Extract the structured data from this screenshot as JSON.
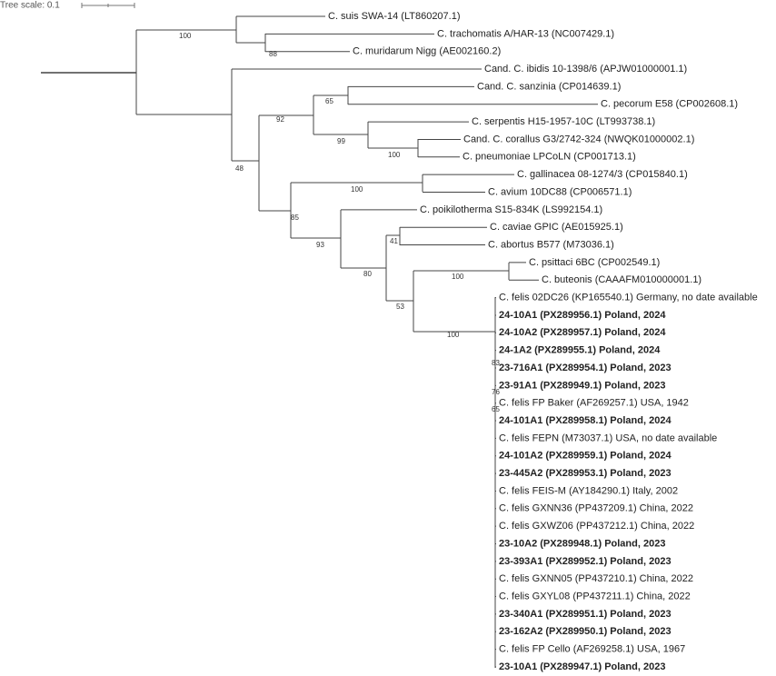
{
  "scale_label": "Tree scale: 0.1",
  "leaves": [
    {
      "label": "C. suis SWA-14 (LT860207.1)",
      "bold": false
    },
    {
      "label": "C. trachomatis A/HAR-13 (NC007429.1)",
      "bold": false
    },
    {
      "label": "C. muridarum Nigg (AE002160.2)",
      "bold": false
    },
    {
      "label": "Cand. C. ibidis 10-1398/6 (APJW01000001.1)",
      "bold": false
    },
    {
      "label": "Cand. C. sanzinia (CP014639.1)",
      "bold": false
    },
    {
      "label": "C. pecorum E58 (CP002608.1)",
      "bold": false
    },
    {
      "label": "C. serpentis H15-1957-10C (LT993738.1)",
      "bold": false
    },
    {
      "label": "Cand. C. corallus G3/2742-324 (NWQK01000002.1)",
      "bold": false
    },
    {
      "label": "C. pneumoniae LPCoLN (CP001713.1)",
      "bold": false
    },
    {
      "label": "C. gallinacea 08-1274/3 (CP015840.1)",
      "bold": false
    },
    {
      "label": "C. avium 10DC88 (CP006571.1)",
      "bold": false
    },
    {
      "label": "C. poikilotherma S15-834K (LS992154.1)",
      "bold": false
    },
    {
      "label": "C. caviae GPIC (AE015925.1)",
      "bold": false
    },
    {
      "label": "C. abortus B577 (M73036.1)",
      "bold": false
    },
    {
      "label": "C. psittaci 6BC (CP002549.1)",
      "bold": false
    },
    {
      "label": "C. buteonis (CAAAFM010000001.1)",
      "bold": false
    },
    {
      "label": "C. felis 02DC26 (KP165540.1) Germany, no date available",
      "bold": false
    },
    {
      "label": "24-10A1 (PX289956.1) Poland, 2024",
      "bold": true
    },
    {
      "label": "24-10A2 (PX289957.1) Poland, 2024",
      "bold": true
    },
    {
      "label": "24-1A2 (PX289955.1) Poland, 2024",
      "bold": true
    },
    {
      "label": "23-716A1 (PX289954.1) Poland, 2023",
      "bold": true
    },
    {
      "label": "23-91A1 (PX289949.1) Poland, 2023",
      "bold": true
    },
    {
      "label": "C. felis FP Baker (AF269257.1) USA, 1942",
      "bold": false
    },
    {
      "label": "24-101A1 (PX289958.1) Poland, 2024",
      "bold": true
    },
    {
      "label": "C. felis FEPN (M73037.1) USA, no date available",
      "bold": false
    },
    {
      "label": "24-101A2 (PX289959.1) Poland, 2024",
      "bold": true
    },
    {
      "label": "23-445A2 (PX289953.1) Poland, 2023",
      "bold": true
    },
    {
      "label": "C. felis FEIS-M (AY184290.1) Italy, 2002",
      "bold": false
    },
    {
      "label": "C. felis GXNN36 (PP437209.1) China, 2022",
      "bold": false
    },
    {
      "label": "C. felis GXWZ06 (PP437212.1) China, 2022",
      "bold": false
    },
    {
      "label": "23-10A2 (PX289948.1) Poland, 2023",
      "bold": true
    },
    {
      "label": "23-393A1 (PX289952.1) Poland, 2023",
      "bold": true
    },
    {
      "label": "C. felis GXNN05 (PP437210.1) China, 2022",
      "bold": false
    },
    {
      "label": "C. felis GXYL08 (PP437211.1) China, 2022",
      "bold": false
    },
    {
      "label": "23-340A1 (PX289951.1) Poland, 2023",
      "bold": true
    },
    {
      "label": "23-162A2 (PX289950.1) Poland, 2023",
      "bold": true
    },
    {
      "label": "C. felis FP Cello (AF269258.1) USA, 1967",
      "bold": false
    },
    {
      "label": "23-10A1 (PX289947.1) Poland, 2023",
      "bold": true
    }
  ],
  "support": [
    "100",
    "88",
    "65",
    "92",
    "99",
    "100",
    "48",
    "100",
    "85",
    "41",
    "93",
    "80",
    "100",
    "53",
    "100",
    "83",
    "76",
    "65"
  ]
}
